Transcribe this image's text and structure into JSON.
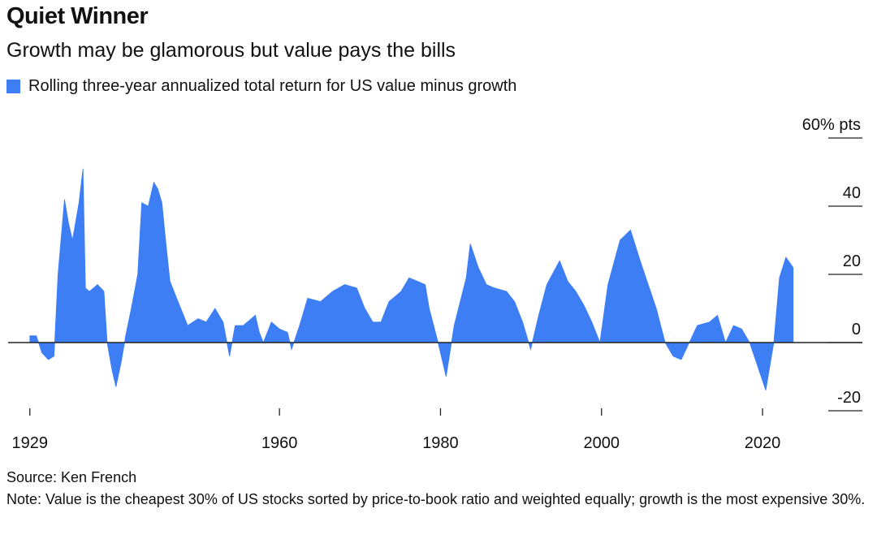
{
  "chart_data": {
    "type": "area",
    "title": "Quiet Winner",
    "subtitle": "Growth may be glamorous but value pays the bills",
    "source": "Source: Ken French",
    "note": "Note: Value is the cheapest 30% of US stocks sorted by price-to-book ratio and weighted equally; growth is the most expensive 30%.",
    "x": [
      1929.0,
      1929.8,
      1930.5,
      1931.3,
      1932.0,
      1932.5,
      1933.3,
      1933.8,
      1934.3,
      1935.1,
      1935.6,
      1935.9,
      1936.4,
      1937.4,
      1938.2,
      1938.6,
      1939.2,
      1939.7,
      1940.4,
      1940.9,
      1941.6,
      1942.4,
      1942.9,
      1943.7,
      1944.4,
      1944.9,
      1945.4,
      1945.9,
      1946.4,
      1947.4,
      1948.6,
      1949.9,
      1950.9,
      1952.0,
      1953.0,
      1953.8,
      1954.5,
      1955.5,
      1957.0,
      1957.5,
      1958.0,
      1959.0,
      1960.0,
      1961.0,
      1961.5,
      1962.5,
      1963.5,
      1965.1,
      1966.6,
      1968.1,
      1969.6,
      1970.6,
      1971.6,
      1972.6,
      1973.6,
      1975.1,
      1976.1,
      1977.1,
      1978.1,
      1978.6,
      1979.7,
      1980.7,
      1981.7,
      1983.2,
      1983.7,
      1984.7,
      1985.7,
      1986.7,
      1988.2,
      1989.2,
      1990.2,
      1991.2,
      1992.2,
      1993.2,
      1994.8,
      1995.8,
      1996.8,
      1997.8,
      1998.8,
      1999.8,
      2000.8,
      2002.3,
      2003.6,
      2004.8,
      2005.8,
      2006.8,
      2007.9,
      2008.9,
      2009.9,
      2010.9,
      2011.9,
      2013.4,
      2014.4,
      2015.4,
      2016.4,
      2017.4,
      2018.4,
      2019.4,
      2020.4,
      2021.4,
      2022.1,
      2022.9,
      2023.8
    ],
    "series": [
      {
        "name": "Rolling three-year annualized total return for US value minus growth",
        "color": "#3d7ef5",
        "values": [
          2,
          2,
          -3,
          -5,
          -4,
          20,
          42,
          35,
          30,
          41,
          51,
          16,
          15,
          17,
          15,
          0,
          -8,
          -13,
          -5,
          2,
          10,
          20,
          41,
          40,
          47,
          45,
          41,
          29,
          18,
          12,
          5,
          7,
          6,
          10,
          6,
          -4,
          5,
          5,
          8,
          3,
          0,
          6,
          4,
          3,
          -2,
          5,
          13,
          12,
          15,
          17,
          16,
          10,
          6,
          6,
          12,
          15,
          19,
          18,
          17,
          10,
          0,
          -10,
          5,
          19,
          29,
          22,
          17,
          16,
          15,
          12,
          6,
          -2,
          8,
          17,
          24,
          18,
          15,
          11,
          6,
          0,
          17,
          30,
          33,
          24,
          17,
          10,
          0,
          -4,
          -5,
          0,
          5,
          6,
          8,
          0,
          5,
          4,
          0,
          -7,
          -14,
          0,
          19,
          25,
          22
        ]
      }
    ],
    "xlim": [
      1926.3,
      2032.4
    ],
    "xticks": [
      1929,
      1960,
      1980,
      2000,
      2020
    ],
    "ylim": [
      -20,
      60
    ],
    "yticks": [
      {
        "value": 60,
        "label": "60% pts"
      },
      40,
      20,
      0,
      -20
    ]
  }
}
